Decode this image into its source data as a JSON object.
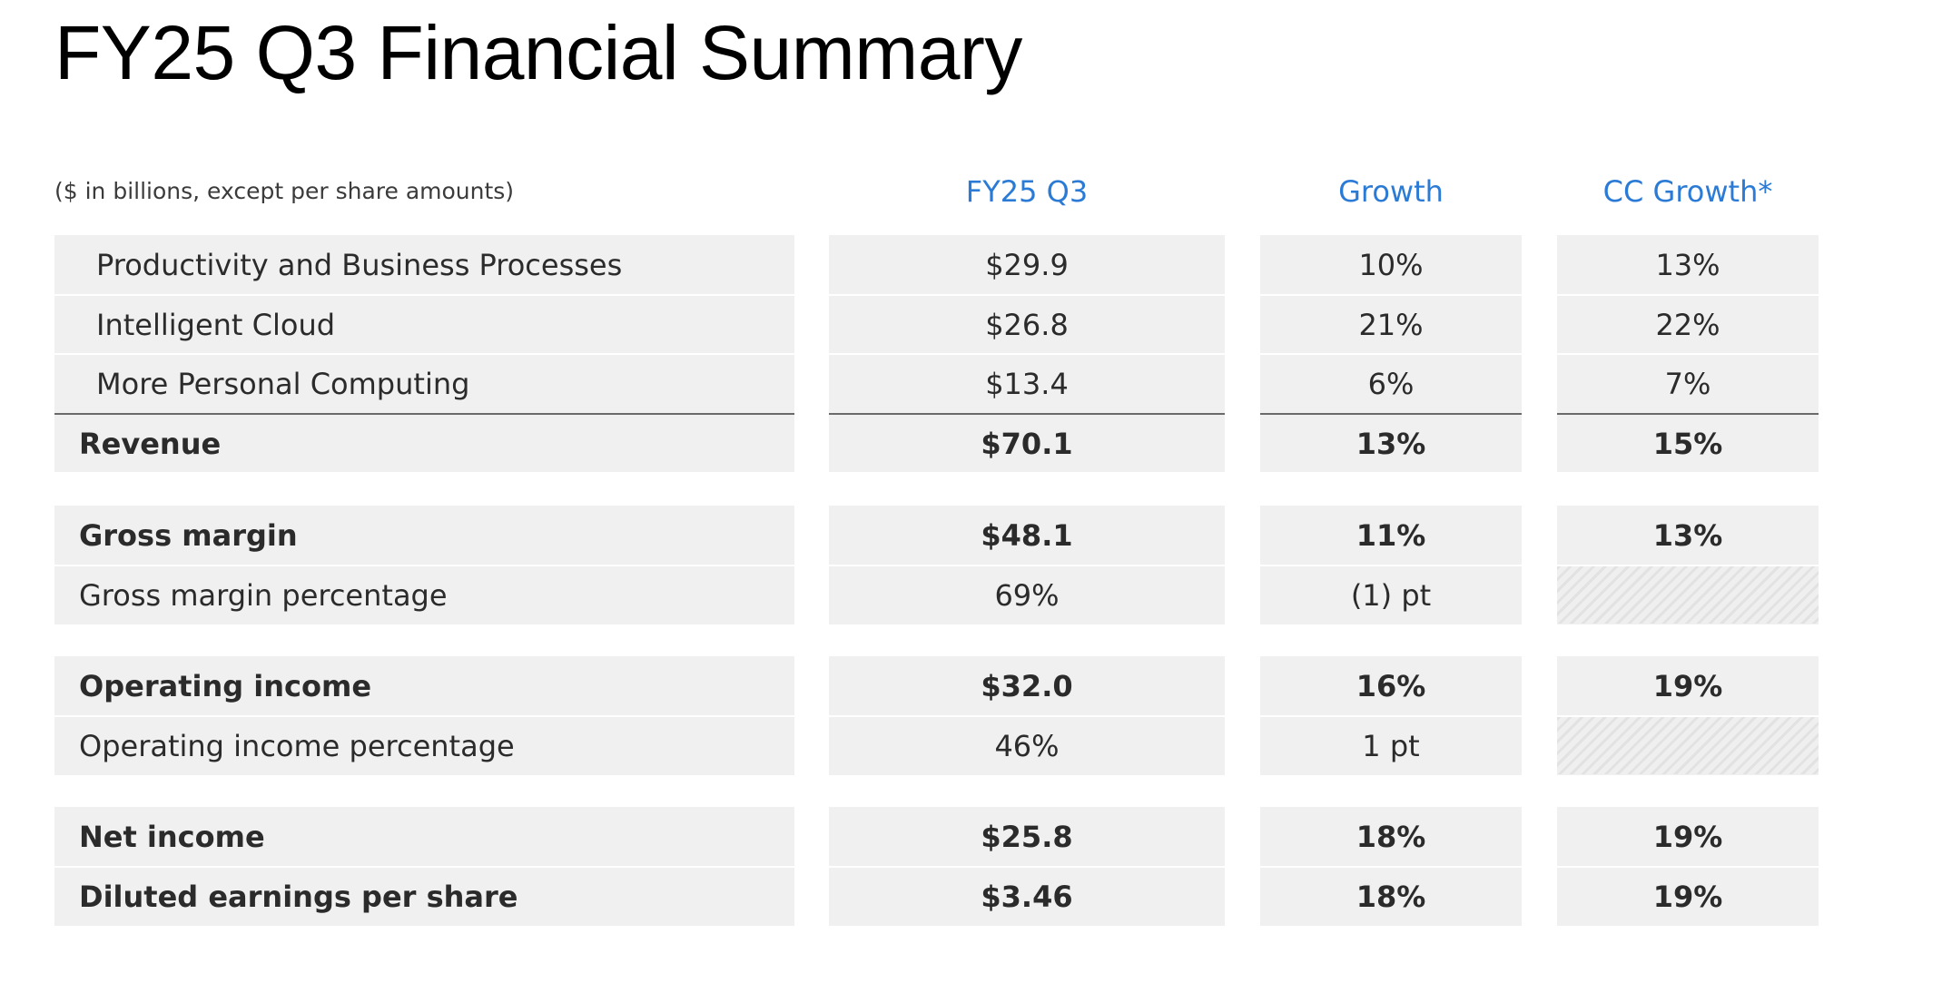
{
  "title": "FY25 Q3 Financial Summary",
  "units_note": "($ in billions, except per share amounts)",
  "columns": [
    "FY25 Q3",
    "Growth",
    "CC Growth*"
  ],
  "colors": {
    "header_accent": "#2b7bd6",
    "cell_fill": "#f0f0f0",
    "rule": "#6a6a6a"
  },
  "groups": [
    {
      "rows": [
        {
          "label": "Productivity and Business Processes",
          "value": "$29.9",
          "growth": "10%",
          "cc_growth": "13%"
        },
        {
          "label": "Intelligent Cloud",
          "value": "$26.8",
          "growth": "21%",
          "cc_growth": "22%"
        },
        {
          "label": "More Personal Computing",
          "value": "$13.4",
          "growth": "6%",
          "cc_growth": "7%"
        },
        {
          "label": "Revenue",
          "value": "$70.1",
          "growth": "13%",
          "cc_growth": "15%"
        }
      ]
    },
    {
      "rows": [
        {
          "label": "Gross margin",
          "value": "$48.1",
          "growth": "11%",
          "cc_growth": "13%"
        },
        {
          "label": "Gross margin percentage",
          "value": "69%",
          "growth": "(1) pt",
          "cc_growth": ""
        }
      ]
    },
    {
      "rows": [
        {
          "label": "Operating income",
          "value": "$32.0",
          "growth": "16%",
          "cc_growth": "19%"
        },
        {
          "label": "Operating income percentage",
          "value": "46%",
          "growth": "1 pt",
          "cc_growth": ""
        }
      ]
    },
    {
      "rows": [
        {
          "label": "Net income",
          "value": "$25.8",
          "growth": "18%",
          "cc_growth": "19%"
        },
        {
          "label": "Diluted earnings per share",
          "value": "$3.46",
          "growth": "18%",
          "cc_growth": "19%"
        }
      ]
    }
  ]
}
